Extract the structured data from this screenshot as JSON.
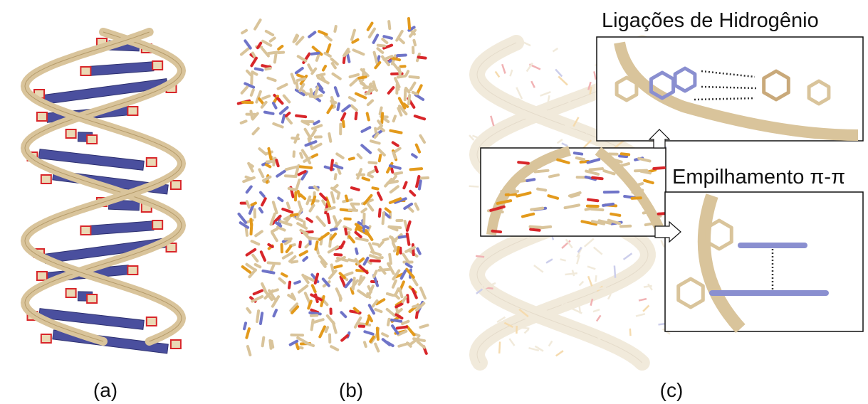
{
  "panels": [
    {
      "label": "(a)"
    },
    {
      "label": "(b)"
    },
    {
      "label": "(c)",
      "callouts": [
        "Ligações de Hidrogênio",
        "Empilhamento π-π"
      ]
    }
  ]
}
